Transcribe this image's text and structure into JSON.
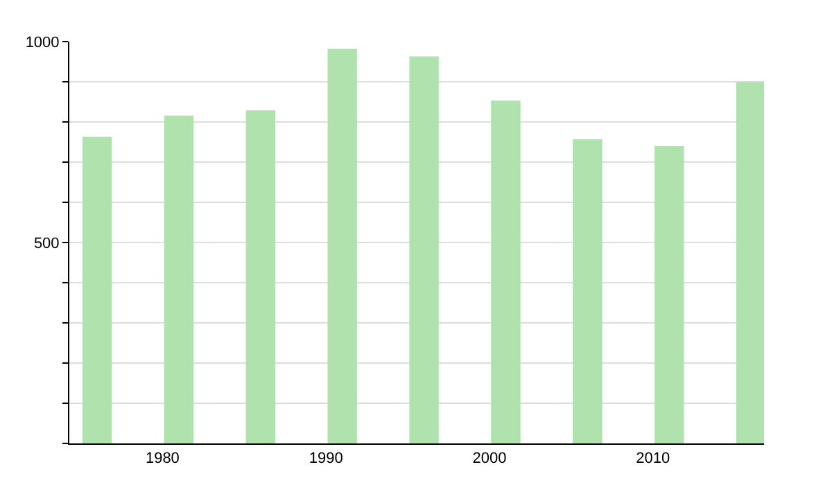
{
  "chart_data": {
    "type": "bar",
    "x": [
      1976,
      1981,
      1986,
      1991,
      1996,
      2001,
      2006,
      2011,
      2016
    ],
    "values": [
      763,
      816,
      829,
      982,
      963,
      853,
      757,
      740,
      899
    ],
    "color": "#b0e2ae",
    "xlim": [
      1974.3,
      2016.8
    ],
    "xticks": [
      1980,
      1990,
      2000,
      2010
    ],
    "ylim": [
      0,
      1000
    ],
    "yticks": [
      {
        "value": 0,
        "label": null
      },
      {
        "value": 100,
        "label": null
      },
      {
        "value": 200,
        "label": null
      },
      {
        "value": 300,
        "label": null
      },
      {
        "value": 400,
        "label": null
      },
      500,
      {
        "value": 600,
        "label": null
      },
      {
        "value": 700,
        "label": null
      },
      {
        "value": 800,
        "label": null
      },
      {
        "value": 900,
        "label": null
      },
      1000
    ],
    "grid": "y"
  }
}
